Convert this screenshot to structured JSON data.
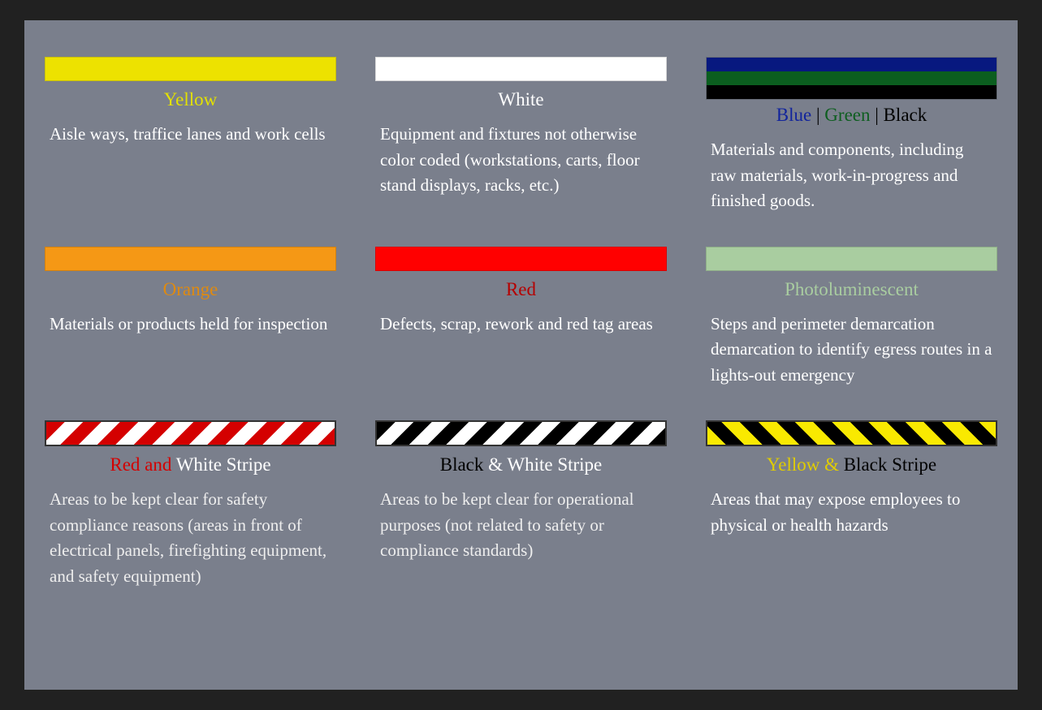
{
  "page_background": "#212121",
  "panel_background": "#7a7f8c",
  "typography": {
    "font_family": "Georgia",
    "title_fontsize": 23,
    "desc_fontsize": 21,
    "desc_color": "#ffffff"
  },
  "cells": [
    {
      "id": "yellow",
      "swatch_type": "solid",
      "colors": [
        "#ede200"
      ],
      "title_parts": [
        {
          "text": "Yellow",
          "color": "#e3e100"
        }
      ],
      "description": "Aisle ways, traffice lanes and work cells"
    },
    {
      "id": "white",
      "swatch_type": "solid",
      "colors": [
        "#ffffff"
      ],
      "title_parts": [
        {
          "text": "White",
          "color": "#ffffff"
        }
      ],
      "description": "Equipment and fixtures not otherwise color coded (workstations, carts, floor stand displays, racks, etc.)"
    },
    {
      "id": "blue-green-black",
      "swatch_type": "tricolor",
      "colors": [
        "#07187f",
        "#0b5e1f",
        "#000000"
      ],
      "title_parts": [
        {
          "text": "Blue",
          "color": "#12249c"
        },
        {
          "text": " | ",
          "color": "#000000"
        },
        {
          "text": "Green",
          "color": "#0e5e20"
        },
        {
          "text": " | ",
          "color": "#000000"
        },
        {
          "text": "Black",
          "color": "#000000"
        }
      ],
      "description": "Materials and components, including raw materials, work-in-progress and finished goods."
    },
    {
      "id": "orange",
      "swatch_type": "solid",
      "colors": [
        "#f59815"
      ],
      "title_parts": [
        {
          "text": "Orange",
          "color": "#df8a10"
        }
      ],
      "description": "Materials or products held for inspection"
    },
    {
      "id": "red",
      "swatch_type": "solid",
      "colors": [
        "#ff0000"
      ],
      "title_parts": [
        {
          "text": "Red",
          "color": "#b60000"
        }
      ],
      "description": "Defects, scrap, rework and red tag areas"
    },
    {
      "id": "photoluminescent",
      "swatch_type": "solid",
      "colors": [
        "#a9cda0"
      ],
      "title_parts": [
        {
          "text": "Photoluminescent",
          "color": "#a9cda0"
        }
      ],
      "description": "Steps and perimeter demarcation demarcation to identify egress routes in a lights-out emergency"
    },
    {
      "id": "red-white-stripe",
      "swatch_type": "stripe",
      "stripe_color1": "#d40000",
      "stripe_color2": "#ffffff",
      "stripe_angle": 135,
      "stripe_width": 16,
      "title_parts": [
        {
          "text": "Red and ",
          "color": "#d40000"
        },
        {
          "text": "White Stripe",
          "color": "#ffffff"
        }
      ],
      "description": "Areas to be kept clear for safety compliance reasons (areas in front of electrical panels, firefighting equipment, and safety equipment)"
    },
    {
      "id": "black-white-stripe",
      "swatch_type": "stripe",
      "stripe_color1": "#000000",
      "stripe_color2": "#ffffff",
      "stripe_angle": 135,
      "stripe_width": 16,
      "title_parts": [
        {
          "text": "Black ",
          "color": "#000000"
        },
        {
          "text": "& White Stripe",
          "color": "#ffffff"
        }
      ],
      "description": "Areas to be kept clear for operational purposes (not related to safety or compliance standards)"
    },
    {
      "id": "yellow-black-stripe",
      "swatch_type": "stripe",
      "stripe_color1": "#f9e900",
      "stripe_color2": "#000000",
      "stripe_angle": 45,
      "stripe_width": 16,
      "title_parts": [
        {
          "text": "Yellow & ",
          "color": "#e0cc00"
        },
        {
          "text": " Black Stripe",
          "color": "#000000"
        }
      ],
      "description": "Areas that may expose employees to physical or health hazards"
    }
  ]
}
